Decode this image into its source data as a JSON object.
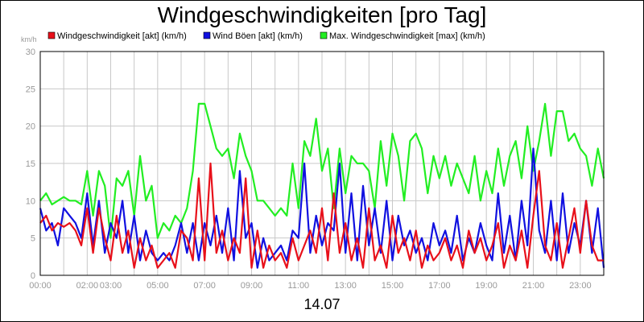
{
  "chart_data": {
    "type": "line",
    "title": "Windgeschwindigkeiten [pro Tag]",
    "ylabel": "km/h",
    "xlabel": "14.07",
    "ylim": [
      0,
      30
    ],
    "yticks": [
      "0",
      "5",
      "10",
      "15",
      "20",
      "25",
      "30"
    ],
    "xticks": [
      "00:00",
      "02:00",
      "03:00",
      "05:00",
      "07:00",
      "09:00",
      "11:00",
      "13:00",
      "15:00",
      "17:00",
      "19:00",
      "21:00",
      "23:00"
    ],
    "xtick_hours": [
      0,
      2,
      3,
      5,
      7,
      9,
      11,
      13,
      15,
      17,
      19,
      21,
      23
    ],
    "xlim_hours": [
      0,
      24
    ],
    "grid": true,
    "legend_position": "top",
    "series": [
      {
        "name": "Windgeschwindigkeit [akt] (km/h)",
        "color": "#e8101a",
        "x": [
          0,
          0.25,
          0.5,
          0.75,
          1,
          1.25,
          1.5,
          1.75,
          2,
          2.25,
          2.5,
          2.75,
          3,
          3.25,
          3.5,
          3.75,
          4,
          4.25,
          4.5,
          4.75,
          5,
          5.25,
          5.5,
          5.75,
          6,
          6.25,
          6.5,
          6.75,
          7,
          7.25,
          7.5,
          7.75,
          8,
          8.25,
          8.5,
          8.75,
          9,
          9.25,
          9.5,
          9.75,
          10,
          10.25,
          10.5,
          10.75,
          11,
          11.25,
          11.5,
          11.75,
          12,
          12.25,
          12.5,
          12.75,
          13,
          13.25,
          13.5,
          13.75,
          14,
          14.25,
          14.5,
          14.75,
          15,
          15.25,
          15.5,
          15.75,
          16,
          16.25,
          16.5,
          16.75,
          17,
          17.25,
          17.5,
          17.75,
          18,
          18.25,
          18.5,
          18.75,
          19,
          19.25,
          19.5,
          19.75,
          20,
          20.25,
          20.5,
          20.75,
          21,
          21.25,
          21.5,
          21.75,
          22,
          22.25,
          22.5,
          22.75,
          23,
          23.25,
          23.5,
          23.75,
          24
        ],
        "values": [
          7,
          8,
          6,
          7,
          6.5,
          7,
          6,
          4,
          9,
          3,
          9,
          5,
          2,
          8,
          3,
          6,
          1,
          5,
          2,
          4,
          1,
          2,
          3,
          1,
          6,
          5,
          2,
          13,
          2,
          15,
          3,
          6,
          2,
          5,
          3,
          13,
          1,
          6,
          1,
          4,
          2,
          3,
          1,
          5,
          2,
          4,
          6,
          3,
          9,
          2,
          11,
          3,
          7,
          2,
          5,
          1,
          9,
          2,
          4,
          1,
          8,
          3,
          5,
          2,
          6,
          1,
          4,
          2,
          3,
          5,
          2,
          4,
          1,
          6,
          3,
          5,
          2,
          4,
          7,
          1,
          4,
          2,
          6,
          1,
          8,
          14,
          4,
          2,
          7,
          1,
          5,
          9,
          3,
          10,
          4,
          2,
          2
        ]
      },
      {
        "name": "Wind Böen [akt] (km/h)",
        "color": "#1010e0",
        "x": [
          0,
          0.25,
          0.5,
          0.75,
          1,
          1.25,
          1.5,
          1.75,
          2,
          2.25,
          2.5,
          2.75,
          3,
          3.25,
          3.5,
          3.75,
          4,
          4.25,
          4.5,
          4.75,
          5,
          5.25,
          5.5,
          5.75,
          6,
          6.25,
          6.5,
          6.75,
          7,
          7.25,
          7.5,
          7.75,
          8,
          8.25,
          8.5,
          8.75,
          9,
          9.25,
          9.5,
          9.75,
          10,
          10.25,
          10.5,
          10.75,
          11,
          11.25,
          11.5,
          11.75,
          12,
          12.25,
          12.5,
          12.75,
          13,
          13.25,
          13.5,
          13.75,
          14,
          14.25,
          14.5,
          14.75,
          15,
          15.25,
          15.5,
          15.75,
          16,
          16.25,
          16.5,
          16.75,
          17,
          17.25,
          17.5,
          17.75,
          18,
          18.25,
          18.5,
          18.75,
          19,
          19.25,
          19.5,
          19.75,
          20,
          20.25,
          20.5,
          20.75,
          21,
          21.25,
          21.5,
          21.75,
          22,
          22.25,
          22.5,
          22.75,
          23,
          23.25,
          23.5,
          23.75,
          24
        ],
        "values": [
          9,
          6,
          7,
          4,
          9,
          8,
          7,
          5,
          11,
          4,
          10,
          3,
          7,
          5,
          10,
          3,
          8,
          2,
          6,
          3,
          2,
          3,
          2,
          4,
          7,
          3,
          7,
          2,
          7,
          4,
          8,
          3,
          9,
          2,
          14,
          5,
          7,
          1,
          5,
          2,
          3,
          4,
          2,
          6,
          5,
          15,
          3,
          8,
          4,
          7,
          6,
          15,
          3,
          11,
          2,
          12,
          4,
          9,
          3,
          10,
          2,
          8,
          4,
          6,
          3,
          5,
          2,
          7,
          4,
          6,
          3,
          8,
          2,
          5,
          3,
          7,
          4,
          2,
          11,
          3,
          8,
          2,
          10,
          4,
          17,
          6,
          3,
          10,
          2,
          11,
          3,
          7,
          4,
          10,
          3,
          9,
          1
        ]
      },
      {
        "name": "Max. Windgeschwindigkeit [max] (km/h)",
        "color": "#22ee22",
        "x": [
          0,
          0.25,
          0.5,
          0.75,
          1,
          1.25,
          1.5,
          1.75,
          2,
          2.25,
          2.5,
          2.75,
          3,
          3.25,
          3.5,
          3.75,
          4,
          4.25,
          4.5,
          4.75,
          5,
          5.25,
          5.5,
          5.75,
          6,
          6.25,
          6.5,
          6.75,
          7,
          7.25,
          7.5,
          7.75,
          8,
          8.25,
          8.5,
          8.75,
          9,
          9.25,
          9.5,
          9.75,
          10,
          10.25,
          10.5,
          10.75,
          11,
          11.25,
          11.5,
          11.75,
          12,
          12.25,
          12.5,
          12.75,
          13,
          13.25,
          13.5,
          13.75,
          14,
          14.25,
          14.5,
          14.75,
          15,
          15.25,
          15.5,
          15.75,
          16,
          16.25,
          16.5,
          16.75,
          17,
          17.25,
          17.5,
          17.75,
          18,
          18.25,
          18.5,
          18.75,
          19,
          19.25,
          19.5,
          19.75,
          20,
          20.25,
          20.5,
          20.75,
          21,
          21.25,
          21.5,
          21.75,
          22,
          22.25,
          22.5,
          22.75,
          23,
          23.25,
          23.5,
          23.75,
          24
        ],
        "values": [
          10,
          11,
          9.5,
          10,
          10.5,
          10,
          10,
          9.5,
          14,
          8,
          14,
          12,
          5,
          13,
          12,
          14,
          8,
          16,
          10,
          12,
          5,
          7,
          6,
          8,
          7,
          9,
          14,
          23,
          23,
          20,
          17,
          16,
          17,
          13,
          19,
          16,
          14,
          10,
          10,
          9,
          8,
          9,
          8,
          15,
          9,
          18,
          16,
          21,
          14,
          17,
          9,
          17,
          11,
          16,
          15,
          15,
          14,
          9,
          18,
          12,
          19,
          16,
          10,
          18,
          19,
          17,
          11,
          16,
          13,
          16,
          12,
          15,
          13,
          11,
          16,
          10,
          14,
          11,
          17,
          12,
          16,
          18,
          13,
          20,
          14,
          18,
          23,
          16,
          22,
          22,
          18,
          19,
          17,
          16,
          12,
          17,
          13
        ]
      }
    ]
  }
}
